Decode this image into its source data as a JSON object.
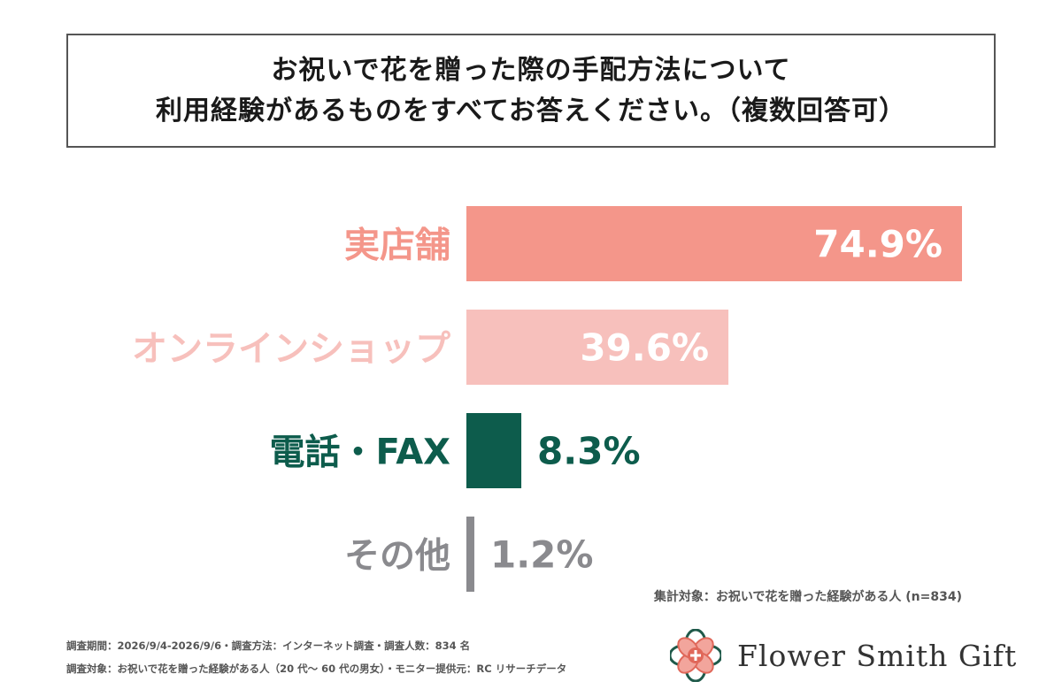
{
  "title": {
    "line1": "お祝いで花を贈った際の手配方法について",
    "line2": "利用経験があるものをすべてお答えください。（複数回答可）"
  },
  "chart_data": {
    "type": "bar",
    "orientation": "horizontal",
    "categories": [
      "実店舗",
      "オンラインショップ",
      "電話・FAX",
      "その他"
    ],
    "values": [
      74.9,
      39.6,
      8.3,
      1.2
    ],
    "value_labels": [
      "74.9%",
      "39.6%",
      "8.3%",
      "1.2%"
    ],
    "unit": "%",
    "xlim": [
      0,
      74.9
    ],
    "colors": [
      "#f4968a",
      "#f7c0bc",
      "#0d5c4c",
      "#8a8a8e"
    ],
    "grid": false,
    "legend": "none"
  },
  "notes": {
    "base": "集計対象：お祝いで花を贈った経験がある人 (n=834)"
  },
  "footer": {
    "line1": "調査期間：2026/9/4-2026/9/6・調査方法：インターネット調査・調査人数：834 名",
    "line2": "調査対象：お祝いで花を贈った経験がある人（20 代〜 60 代の男女）・モニター提供元：RC リサーチデータ"
  },
  "brand": {
    "name": "Flower Smith Gift",
    "logo_icon": "flower-emblem",
    "colors": {
      "green": "#1f5a4a",
      "red": "#e0685a",
      "pink": "#f2a59c"
    }
  }
}
